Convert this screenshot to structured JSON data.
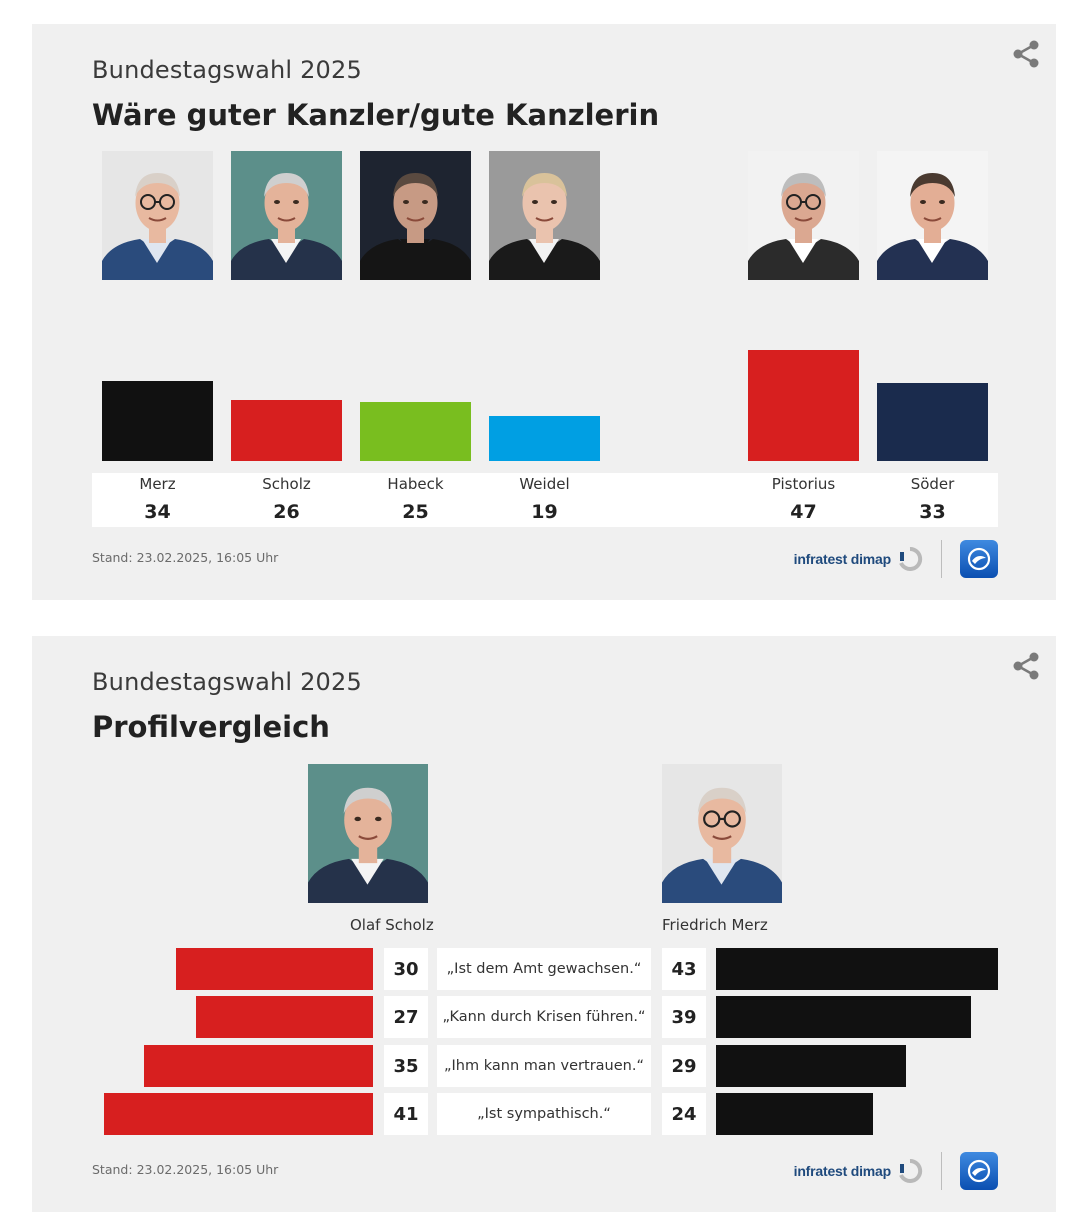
{
  "card1": {
    "supertitle": "Bundestagswahl 2025",
    "title": "Wäre guter Kanzler/gute Kanzlerin",
    "stand_label": "Stand:",
    "stand_value": "23.02.2025, 16:05 Uhr",
    "brand": "infratest dimap",
    "share_icon": "share-icon"
  },
  "card2": {
    "supertitle": "Bundestagswahl 2025",
    "title": "Profilvergleich",
    "stand_label": "Stand:",
    "stand_value": "23.02.2025, 16:05 Uhr",
    "brand": "infratest dimap",
    "share_icon": "share-icon"
  },
  "chart_data": [
    {
      "type": "bar",
      "title": "Wäre guter Kanzler/gute Kanzlerin",
      "categories": [
        "Merz",
        "Scholz",
        "Habeck",
        "Weidel",
        "Pistorius",
        "Söder"
      ],
      "values": [
        34,
        26,
        25,
        19,
        47,
        33
      ],
      "colors": [
        "#111111",
        "#d71f1f",
        "#79be1f",
        "#009fe3",
        "#d71f1f",
        "#1a2b4d"
      ],
      "ylim": [
        0,
        47
      ]
    },
    {
      "type": "bar",
      "title": "Profilvergleich",
      "categories": [
        "„Ist dem Amt gewachsen.“",
        "„Kann durch Krisen führen.“",
        "„Ihm kann man vertrauen.“",
        "„Ist sympathisch.“"
      ],
      "series": [
        {
          "name": "Olaf Scholz",
          "values": [
            30,
            27,
            35,
            41
          ],
          "color": "#d71f1f"
        },
        {
          "name": "Friedrich Merz",
          "values": [
            43,
            39,
            29,
            24
          ],
          "color": "#111111"
        }
      ]
    }
  ]
}
